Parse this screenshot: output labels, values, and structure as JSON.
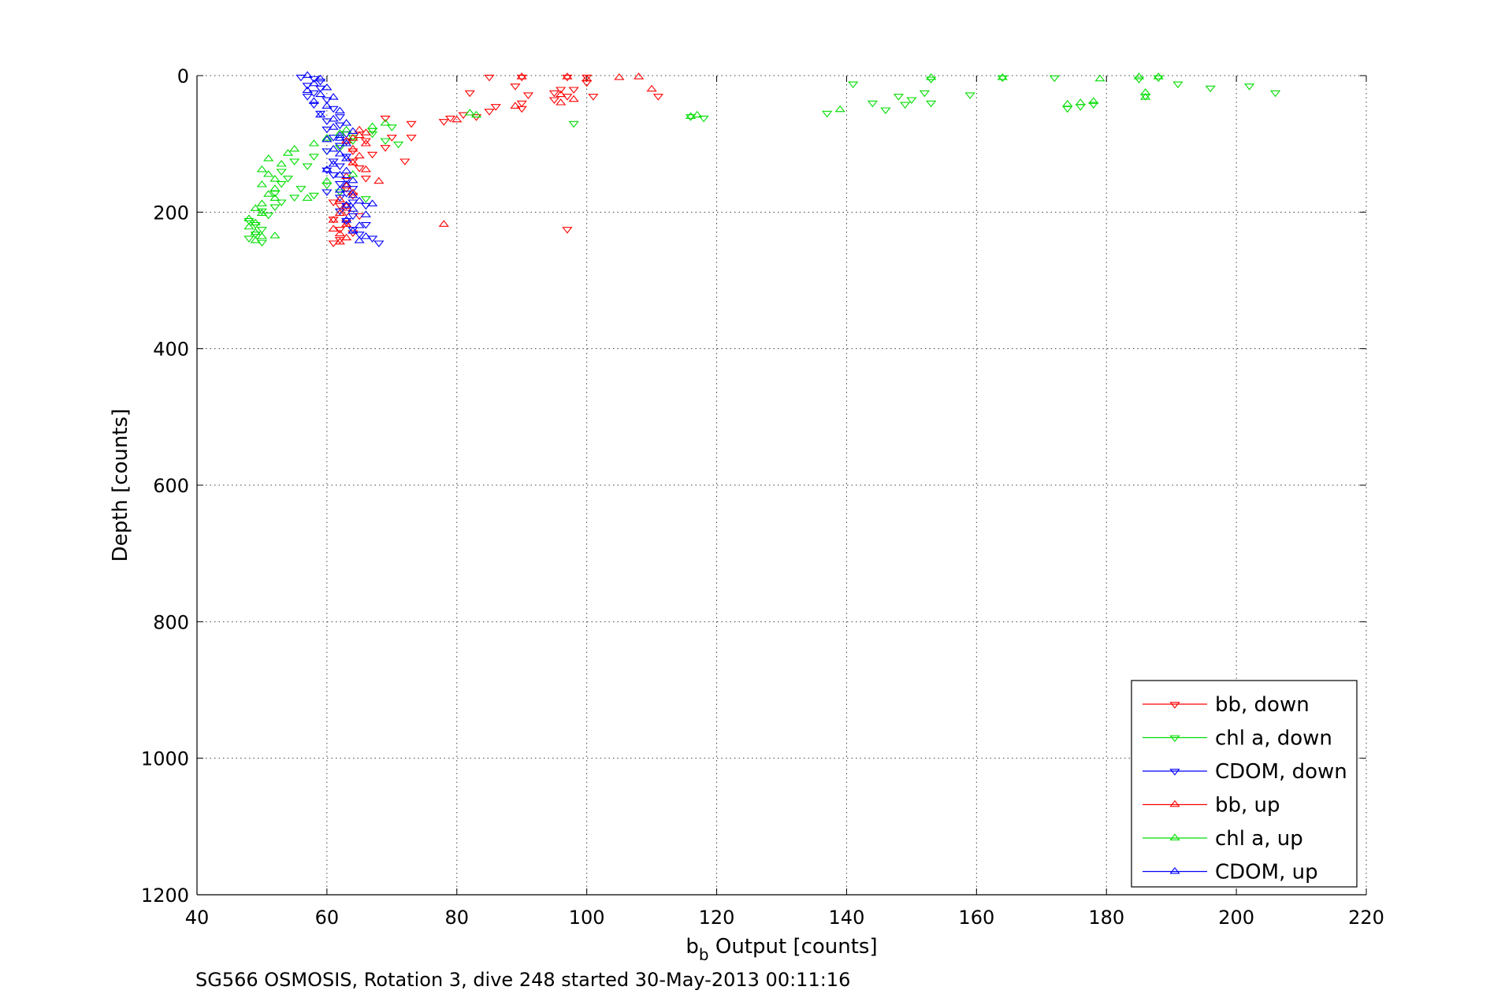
{
  "chart_data": {
    "type": "scatter",
    "xlabel_main": "b",
    "xlabel_sub": "b",
    "xlabel_rest": " Output [counts]",
    "ylabel": "Depth [counts]",
    "caption": "SG566 OSMOSIS, Rotation 3, dive 248 started 30-May-2013 00:11:16",
    "xlim": [
      40,
      220
    ],
    "ylim": [
      0,
      1200
    ],
    "y_reversed": true,
    "grid": true,
    "legend_position": "bottom-right",
    "xticks": [
      40,
      60,
      80,
      100,
      120,
      140,
      160,
      180,
      200,
      220
    ],
    "yticks": [
      0,
      200,
      400,
      600,
      800,
      1000,
      1200
    ],
    "series": [
      {
        "name": "bb, down",
        "color": "#ff0000",
        "marker": "triangle-down",
        "points": [
          [
            85,
            2
          ],
          [
            90,
            2
          ],
          [
            97,
            2
          ],
          [
            100,
            2
          ],
          [
            100,
            10
          ],
          [
            89,
            15
          ],
          [
            96,
            20
          ],
          [
            95,
            25
          ],
          [
            98,
            20
          ],
          [
            82,
            25
          ],
          [
            91,
            28
          ],
          [
            97,
            30
          ],
          [
            101,
            30
          ],
          [
            111,
            30
          ],
          [
            95,
            35
          ],
          [
            90,
            40
          ],
          [
            86,
            45
          ],
          [
            85,
            52
          ],
          [
            90,
            48
          ],
          [
            81,
            57
          ],
          [
            83,
            60
          ],
          [
            79,
            62
          ],
          [
            78,
            67
          ],
          [
            69,
            62
          ],
          [
            73,
            70
          ],
          [
            67,
            80
          ],
          [
            70,
            90
          ],
          [
            73,
            90
          ],
          [
            66,
            95
          ],
          [
            69,
            105
          ],
          [
            64,
            110
          ],
          [
            67,
            115
          ],
          [
            64,
            125
          ],
          [
            72,
            125
          ],
          [
            65,
            135
          ],
          [
            66,
            150
          ],
          [
            63,
            165
          ],
          [
            64,
            175
          ],
          [
            61,
            185
          ],
          [
            62,
            190
          ],
          [
            63,
            200
          ],
          [
            65,
            205
          ],
          [
            61,
            210
          ],
          [
            63,
            215
          ],
          [
            62,
            225
          ],
          [
            64,
            230
          ],
          [
            62,
            240
          ],
          [
            61,
            245
          ],
          [
            97,
            225
          ]
        ]
      },
      {
        "name": "chl a, down",
        "color": "#00dd00",
        "marker": "triangle-down",
        "points": [
          [
            141,
            12
          ],
          [
            153,
            5
          ],
          [
            164,
            3
          ],
          [
            172,
            3
          ],
          [
            185,
            5
          ],
          [
            188,
            3
          ],
          [
            191,
            12
          ],
          [
            196,
            18
          ],
          [
            202,
            15
          ],
          [
            206,
            25
          ],
          [
            148,
            30
          ],
          [
            152,
            25
          ],
          [
            150,
            35
          ],
          [
            144,
            40
          ],
          [
            149,
            42
          ],
          [
            153,
            40
          ],
          [
            159,
            28
          ],
          [
            137,
            55
          ],
          [
            146,
            50
          ],
          [
            176,
            45
          ],
          [
            174,
            48
          ],
          [
            178,
            42
          ],
          [
            186,
            30
          ],
          [
            98,
            70
          ],
          [
            116,
            60
          ],
          [
            118,
            62
          ],
          [
            70,
            75
          ],
          [
            67,
            85
          ],
          [
            64,
            95
          ],
          [
            62,
            105
          ],
          [
            60,
            110
          ],
          [
            58,
            118
          ],
          [
            55,
            125
          ],
          [
            57,
            132
          ],
          [
            53,
            140
          ],
          [
            54,
            150
          ],
          [
            53,
            158
          ],
          [
            56,
            165
          ],
          [
            52,
            172
          ],
          [
            55,
            178
          ],
          [
            53,
            185
          ],
          [
            52,
            192
          ],
          [
            50,
            198
          ],
          [
            51,
            204
          ],
          [
            48,
            212
          ],
          [
            49,
            218
          ],
          [
            50,
            225
          ],
          [
            49,
            232
          ],
          [
            48,
            238
          ],
          [
            50,
            244
          ],
          [
            66,
            180
          ],
          [
            62,
            170
          ],
          [
            60,
            160
          ],
          [
            58,
            175
          ],
          [
            67,
            80
          ],
          [
            69,
            95
          ],
          [
            71,
            100
          ],
          [
            64,
            90
          ]
        ]
      },
      {
        "name": "CDOM, down",
        "color": "#0000ff",
        "marker": "triangle-down",
        "points": [
          [
            56,
            2
          ],
          [
            58,
            4
          ],
          [
            59,
            8
          ],
          [
            57,
            14
          ],
          [
            59,
            18
          ],
          [
            58,
            25
          ],
          [
            57,
            30
          ],
          [
            60,
            35
          ],
          [
            58,
            42
          ],
          [
            61,
            48
          ],
          [
            59,
            55
          ],
          [
            62,
            60
          ],
          [
            60,
            66
          ],
          [
            62,
            72
          ],
          [
            60,
            78
          ],
          [
            63,
            85
          ],
          [
            61,
            90
          ],
          [
            63,
            96
          ],
          [
            62,
            102
          ],
          [
            60,
            110
          ],
          [
            63,
            118
          ],
          [
            61,
            125
          ],
          [
            62,
            132
          ],
          [
            60,
            138
          ],
          [
            61,
            145
          ],
          [
            63,
            152
          ],
          [
            62,
            158
          ],
          [
            64,
            165
          ],
          [
            63,
            172
          ],
          [
            62,
            178
          ],
          [
            64,
            185
          ],
          [
            63,
            190
          ],
          [
            62,
            198
          ],
          [
            64,
            205
          ],
          [
            63,
            212
          ],
          [
            66,
            218
          ],
          [
            64,
            225
          ],
          [
            65,
            232
          ],
          [
            67,
            238
          ],
          [
            68,
            245
          ],
          [
            66,
            190
          ],
          [
            60,
            170
          ]
        ]
      },
      {
        "name": "bb, up",
        "color": "#ff0000",
        "marker": "triangle-up",
        "points": [
          [
            90,
            2
          ],
          [
            97,
            2
          ],
          [
            100,
            5
          ],
          [
            105,
            3
          ],
          [
            108,
            2
          ],
          [
            110,
            20
          ],
          [
            96,
            28
          ],
          [
            98,
            35
          ],
          [
            96,
            40
          ],
          [
            89,
            45
          ],
          [
            80,
            65
          ],
          [
            65,
            80
          ],
          [
            66,
            84
          ],
          [
            65,
            88
          ],
          [
            64,
            92
          ],
          [
            63,
            96
          ],
          [
            66,
            100
          ],
          [
            64,
            108
          ],
          [
            65,
            118
          ],
          [
            64,
            128
          ],
          [
            66,
            138
          ],
          [
            63,
            148
          ],
          [
            68,
            155
          ],
          [
            63,
            162
          ],
          [
            64,
            172
          ],
          [
            62,
            182
          ],
          [
            63,
            192
          ],
          [
            62,
            202
          ],
          [
            61,
            212
          ],
          [
            63,
            218
          ],
          [
            61,
            225
          ],
          [
            62,
            232
          ],
          [
            63,
            238
          ],
          [
            62,
            244
          ],
          [
            78,
            218
          ]
        ]
      },
      {
        "name": "chl a, up",
        "color": "#00dd00",
        "marker": "triangle-up",
        "points": [
          [
            179,
            5
          ],
          [
            185,
            2
          ],
          [
            188,
            2
          ],
          [
            186,
            25
          ],
          [
            186,
            32
          ],
          [
            176,
            40
          ],
          [
            178,
            38
          ],
          [
            174,
            42
          ],
          [
            153,
            3
          ],
          [
            164,
            3
          ],
          [
            139,
            50
          ],
          [
            116,
            60
          ],
          [
            117,
            58
          ],
          [
            82,
            55
          ],
          [
            83,
            58
          ],
          [
            69,
            70
          ],
          [
            67,
            75
          ],
          [
            63,
            80
          ],
          [
            62,
            85
          ],
          [
            60,
            92
          ],
          [
            58,
            100
          ],
          [
            55,
            108
          ],
          [
            54,
            114
          ],
          [
            51,
            122
          ],
          [
            53,
            130
          ],
          [
            50,
            138
          ],
          [
            51,
            145
          ],
          [
            52,
            152
          ],
          [
            50,
            160
          ],
          [
            52,
            166
          ],
          [
            51,
            174
          ],
          [
            52,
            180
          ],
          [
            50,
            188
          ],
          [
            49,
            195
          ],
          [
            50,
            202
          ],
          [
            48,
            210
          ],
          [
            49,
            216
          ],
          [
            48,
            222
          ],
          [
            49,
            230
          ],
          [
            50,
            236
          ],
          [
            49,
            242
          ],
          [
            52,
            235
          ],
          [
            57,
            180
          ],
          [
            60,
            155
          ],
          [
            64,
            145
          ]
        ]
      },
      {
        "name": "CDOM, up",
        "color": "#0000ff",
        "marker": "triangle-up",
        "points": [
          [
            57,
            0
          ],
          [
            59,
            5
          ],
          [
            58,
            12
          ],
          [
            60,
            18
          ],
          [
            57,
            22
          ],
          [
            59,
            28
          ],
          [
            61,
            32
          ],
          [
            58,
            38
          ],
          [
            60,
            45
          ],
          [
            62,
            52
          ],
          [
            59,
            58
          ],
          [
            61,
            64
          ],
          [
            63,
            70
          ],
          [
            61,
            76
          ],
          [
            64,
            82
          ],
          [
            62,
            88
          ],
          [
            60,
            94
          ],
          [
            63,
            100
          ],
          [
            61,
            108
          ],
          [
            62,
            115
          ],
          [
            63,
            122
          ],
          [
            61,
            130
          ],
          [
            60,
            138
          ],
          [
            62,
            146
          ],
          [
            64,
            154
          ],
          [
            63,
            160
          ],
          [
            62,
            168
          ],
          [
            64,
            176
          ],
          [
            65,
            184
          ],
          [
            63,
            190
          ],
          [
            64,
            196
          ],
          [
            66,
            204
          ],
          [
            63,
            212
          ],
          [
            65,
            220
          ],
          [
            64,
            228
          ],
          [
            66,
            236
          ],
          [
            65,
            242
          ],
          [
            67,
            188
          ],
          [
            63,
            140
          ],
          [
            62,
            92
          ]
        ]
      }
    ]
  }
}
